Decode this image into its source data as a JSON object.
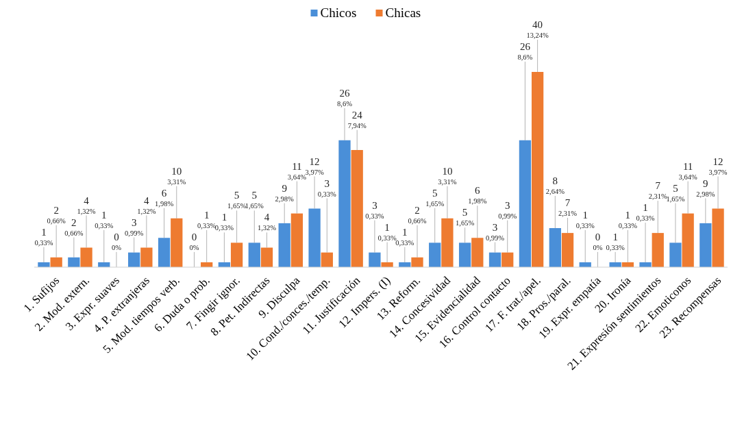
{
  "chart_data": {
    "type": "bar",
    "categories": [
      "1. Sufijos",
      "2. Mod. extern.",
      "3. Expr. suaves",
      "4. P. extranjeras",
      "5. Mod. tiempos verb.",
      "6. Duda o prob.",
      "7. Fingir ignor.",
      "8. Pet. Indirectas",
      "9. Disculpa",
      "10. Cond./conces./temp.",
      "11. Justificación",
      "12. Impers. (I)",
      "13. Reform.",
      "14. Concesividad",
      "15. Evidencialidad",
      "16. Control contacto",
      "17. F. trat./apel.",
      "18. Pros./paral.",
      "19. Expr. empatía",
      "20. Ironía",
      "21. Expresión sentimientos",
      "22. Emoticonos",
      "23. Recompensas"
    ],
    "series": [
      {
        "name": "Chicos",
        "color": "#4a8fd8",
        "values": [
          1,
          2,
          1,
          3,
          6,
          0,
          1,
          5,
          9,
          12,
          26,
          3,
          1,
          5,
          5,
          3,
          26,
          8,
          1,
          1,
          1,
          5,
          9
        ],
        "value_labels": [
          "1\n0,33%",
          "2\n0,66%",
          "1\n0,33%",
          "3\n0,99%",
          "6\n1,98%",
          "0\n0%",
          "1\n0,33%",
          "5\n1,65%",
          "9\n2,98%",
          "12\n3,97%",
          "26\n8,6%",
          "3\n0,33%",
          "1\n0,33%",
          "5\n1,65%",
          "5\n1,65%",
          "3\n0,99%",
          "26\n8,6%",
          "8\n2,64%",
          "1\n0,33%",
          "1\n0,33%",
          "1\n0,33%",
          "5\n1,65%",
          "9\n2,98%"
        ]
      },
      {
        "name": "Chicas",
        "color": "#ee7b30",
        "values": [
          2,
          4,
          0,
          4,
          10,
          1,
          5,
          4,
          11,
          3,
          24,
          1,
          2,
          10,
          6,
          3,
          40,
          7,
          0,
          1,
          7,
          11,
          12
        ],
        "value_labels": [
          "2\n0,66%",
          "4\n1,32%",
          "0\n0%",
          "4\n1,32%",
          "10\n3,31%",
          "1\n0,33%",
          "5\n1,65%",
          "4\n1,32%",
          "11\n3,64%",
          "3\n0,33%",
          "24\n7,94%",
          "1\n0,33%",
          "2\n0,66%",
          "10\n3,31%",
          "6\n1,98%",
          "3\n0,99%",
          "40\n13,24%",
          "7\n2,31%",
          "0\n0%",
          "1\n0,33%",
          "7\n2,31%",
          "11\n3,64%",
          "12\n3,97%"
        ]
      }
    ],
    "legend": "top"
  }
}
